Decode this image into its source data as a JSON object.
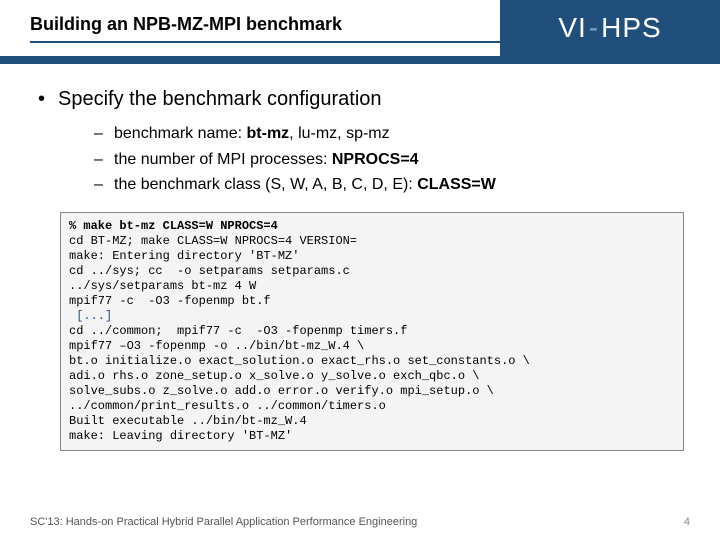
{
  "header": {
    "title": "Building an NPB-MZ-MPI benchmark",
    "logo": {
      "text": "VI-HPS"
    },
    "accent_color": "#1f4f7a",
    "bg_color": "#ffffff"
  },
  "main_bullet": "Specify the benchmark configuration",
  "sub_bullets": [
    {
      "prefix": "benchmark name: ",
      "bold": "bt-mz",
      "suffix": ", lu-mz, sp-mz"
    },
    {
      "prefix": "the number of MPI processes: ",
      "bold": "NPROCS=4",
      "suffix": ""
    },
    {
      "prefix": "the benchmark class (S, W, A, B, C, D, E): ",
      "bold": "CLASS=W",
      "suffix": ""
    }
  ],
  "code": {
    "font": "Courier New",
    "fontsize_pt": 9,
    "bg_color": "#f4f4f4",
    "border_color": "#888888",
    "ellipsis_color": "#1a4fa0",
    "cmd_line": "% make bt-mz CLASS=W NPROCS=4",
    "lines_before": [
      "cd BT-MZ; make CLASS=W NPROCS=4 VERSION=",
      "make: Entering directory 'BT-MZ'",
      "cd ../sys; cc  -o setparams setparams.c",
      "../sys/setparams bt-mz 4 W",
      "mpif77 -c  -O3 -fopenmp bt.f"
    ],
    "ellipsis": " [...]",
    "lines_after": [
      "cd ../common;  mpif77 -c  -O3 -fopenmp timers.f",
      "mpif77 –O3 -fopenmp -o ../bin/bt-mz_W.4 \\",
      "bt.o initialize.o exact_solution.o exact_rhs.o set_constants.o \\",
      "adi.o rhs.o zone_setup.o x_solve.o y_solve.o exch_qbc.o \\",
      "solve_subs.o z_solve.o add.o error.o verify.o mpi_setup.o \\",
      "../common/print_results.o ../common/timers.o",
      "Built executable ../bin/bt-mz_W.4",
      "make: Leaving directory 'BT-MZ'"
    ]
  },
  "footer": {
    "left": "SC'13: Hands-on Practical Hybrid Parallel Application Performance Engineering",
    "page": "4"
  }
}
